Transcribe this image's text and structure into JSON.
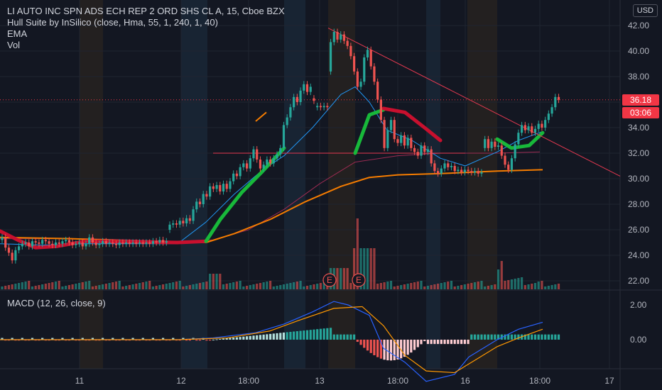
{
  "legend": {
    "title": "LI AUTO INC SPN ADS ECH REP 2 ORD SHS CL A, 15, Cboe BZX",
    "indicator": "Hull Suite by InSilico (close, Hma, 55, 1, 240, 1, 40)",
    "ema": "EMA",
    "vol": "Vol"
  },
  "currency": "USD",
  "last_price": "36.18",
  "countdown": "03:06",
  "macd_label": "MACD (12, 26, close, 9)",
  "earnings_marker": "E",
  "colors": {
    "background": "#131722",
    "up": "#26a69a",
    "down": "#ef5350",
    "hull_up": "#18b83a",
    "hull_down": "#c8102e",
    "ema_long": "#f57c00",
    "ema_short": "#2196f3",
    "ema_mid": "#9c2b52",
    "macd_line": "#2962ff",
    "signal_line": "#ff9800",
    "trendline": "#e53950"
  },
  "chart_data": {
    "type": "candlestick",
    "y_ticks": [
      "42.00",
      "40.00",
      "38.00",
      "36.00",
      "34.00",
      "32.00",
      "30.00",
      "28.00",
      "26.00",
      "24.00",
      "22.00"
    ],
    "ylim": [
      21.0,
      43.0
    ],
    "x_ticks": [
      "11",
      "12",
      "18:00",
      "13",
      "18:00",
      "16",
      "18:00",
      "17"
    ],
    "macd_ticks": [
      "2.00",
      "0.00"
    ],
    "macd_ylim": [
      -2.6,
      2.9
    ],
    "candles": [
      [
        25.2,
        25.4
      ],
      [
        25.4,
        24.6
      ],
      [
        24.6,
        24.2
      ],
      [
        24.2,
        23.6
      ],
      [
        23.6,
        24.4
      ],
      [
        24.4,
        24.7
      ],
      [
        24.7,
        24.9
      ],
      [
        24.9,
        25.0
      ],
      [
        25.0,
        24.7
      ],
      [
        24.7,
        25.1
      ],
      [
        25.1,
        25.0
      ],
      [
        25.0,
        24.9
      ],
      [
        24.9,
        25.2
      ],
      [
        25.2,
        25.1
      ],
      [
        25.1,
        24.9
      ],
      [
        24.9,
        24.8
      ],
      [
        24.8,
        25.0
      ],
      [
        25.0,
        24.9
      ],
      [
        24.9,
        25.1
      ],
      [
        25.1,
        25.2
      ],
      [
        25.2,
        25.0
      ],
      [
        25.0,
        24.8
      ],
      [
        24.8,
        24.9
      ],
      [
        24.9,
        25.0
      ],
      [
        25.0,
        24.7
      ],
      [
        24.7,
        24.9
      ],
      [
        24.9,
        25.4
      ],
      [
        25.4,
        25.0
      ],
      [
        25.0,
        24.8
      ],
      [
        24.8,
        24.9
      ],
      [
        24.9,
        25.1
      ],
      [
        25.1,
        24.9
      ],
      [
        24.9,
        25.0
      ],
      [
        25.0,
        24.9
      ],
      [
        24.9,
        24.8
      ],
      [
        24.8,
        25.0
      ],
      [
        25.0,
        24.9
      ],
      [
        24.9,
        25.0
      ],
      [
        25.0,
        24.9
      ],
      [
        24.9,
        25.0
      ],
      [
        25.0,
        24.9
      ],
      [
        24.9,
        25.0
      ],
      [
        25.0,
        24.9
      ],
      [
        24.9,
        25.0
      ],
      [
        25.0,
        24.9
      ],
      [
        24.9,
        25.1
      ],
      [
        25.1,
        25.0
      ],
      [
        25.0,
        25.2
      ],
      [
        25.2,
        25.0
      ],
      [
        25.0,
        25.1
      ],
      [
        26.0,
        26.4
      ],
      [
        26.4,
        26.5
      ],
      [
        26.5,
        26.4
      ],
      [
        26.4,
        26.7
      ],
      [
        26.7,
        26.5
      ],
      [
        26.5,
        26.9
      ],
      [
        26.9,
        26.7
      ],
      [
        26.7,
        27.6
      ],
      [
        27.6,
        28.2
      ],
      [
        28.2,
        28.0
      ],
      [
        28.0,
        28.8
      ],
      [
        28.8,
        28.6
      ],
      [
        28.6,
        29.4
      ],
      [
        29.4,
        29.2
      ],
      [
        29.2,
        29.5
      ],
      [
        29.5,
        29.0
      ],
      [
        29.0,
        29.6
      ],
      [
        29.6,
        29.2
      ],
      [
        29.2,
        29.8
      ],
      [
        29.8,
        30.4
      ],
      [
        30.4,
        30.2
      ],
      [
        30.2,
        30.9
      ],
      [
        30.9,
        31.2
      ],
      [
        31.2,
        30.8
      ],
      [
        30.8,
        31.6
      ],
      [
        31.6,
        32.3
      ],
      [
        32.3,
        31.5
      ],
      [
        31.5,
        30.8
      ],
      [
        30.8,
        31.1
      ],
      [
        31.1,
        31.5
      ],
      [
        31.5,
        31.2
      ],
      [
        31.2,
        31.6
      ],
      [
        31.6,
        31.9
      ],
      [
        31.9,
        32.4
      ],
      [
        32.4,
        34.2
      ],
      [
        34.2,
        34.8
      ],
      [
        34.8,
        35.6
      ],
      [
        35.6,
        36.4
      ],
      [
        36.4,
        36.0
      ],
      [
        36.0,
        36.9
      ],
      [
        36.9,
        37.4
      ],
      [
        37.4,
        36.8
      ],
      [
        36.8,
        37.2
      ],
      [
        36.3,
        36.1
      ],
      [
        35.6,
        35.7
      ],
      [
        35.7,
        35.6
      ],
      [
        35.6,
        35.7
      ],
      [
        35.7,
        35.6
      ],
      [
        38.4,
        40.7
      ],
      [
        40.7,
        41.5
      ],
      [
        41.5,
        40.9
      ],
      [
        40.9,
        41.3
      ],
      [
        41.3,
        40.8
      ],
      [
        40.8,
        40.4
      ],
      [
        40.4,
        39.6
      ],
      [
        39.6,
        38.4
      ],
      [
        38.4,
        37.2
      ],
      [
        37.2,
        37.6
      ],
      [
        37.6,
        39.5
      ],
      [
        39.5,
        40.1
      ],
      [
        40.1,
        38.8
      ],
      [
        38.8,
        37.6
      ],
      [
        37.6,
        36.2
      ],
      [
        36.2,
        34.6
      ],
      [
        34.6,
        32.4
      ],
      [
        32.4,
        33.8
      ],
      [
        33.8,
        34.6
      ],
      [
        34.6,
        33.1
      ],
      [
        33.1,
        32.8
      ],
      [
        32.8,
        33.4
      ],
      [
        33.4,
        32.6
      ],
      [
        32.6,
        33.2
      ],
      [
        33.2,
        32.4
      ],
      [
        32.4,
        32.1
      ],
      [
        32.1,
        31.8
      ],
      [
        31.8,
        32.6
      ],
      [
        32.6,
        32.1
      ],
      [
        32.1,
        32.3
      ],
      [
        32.3,
        31.2
      ],
      [
        31.2,
        30.6
      ],
      [
        30.6,
        30.4
      ],
      [
        30.4,
        30.8
      ],
      [
        30.8,
        31.2
      ],
      [
        31.2,
        30.9
      ],
      [
        30.9,
        31.0
      ],
      [
        31.0,
        30.6
      ],
      [
        30.6,
        30.7
      ],
      [
        30.7,
        30.5
      ],
      [
        30.5,
        30.7
      ],
      [
        30.7,
        30.6
      ],
      [
        30.6,
        30.5
      ],
      [
        30.5,
        30.6
      ],
      [
        30.6,
        30.4
      ],
      [
        30.4,
        30.5
      ],
      [
        32.4,
        33.1
      ],
      [
        33.1,
        32.4
      ],
      [
        32.4,
        32.9
      ],
      [
        32.9,
        32.5
      ],
      [
        32.5,
        32.6
      ],
      [
        32.6,
        31.8
      ],
      [
        31.8,
        31.1
      ],
      [
        31.1,
        30.7
      ],
      [
        30.7,
        31.6
      ],
      [
        31.6,
        32.7
      ],
      [
        32.7,
        33.6
      ],
      [
        33.6,
        34.2
      ],
      [
        34.2,
        33.8
      ],
      [
        33.8,
        34.1
      ],
      [
        34.1,
        33.6
      ],
      [
        33.6,
        33.9
      ],
      [
        33.9,
        34.3
      ],
      [
        34.3,
        34.0
      ],
      [
        34.0,
        34.6
      ],
      [
        34.6,
        35.1
      ],
      [
        35.1,
        35.6
      ],
      [
        35.6,
        36.4
      ],
      [
        36.4,
        36.18
      ]
    ]
  }
}
